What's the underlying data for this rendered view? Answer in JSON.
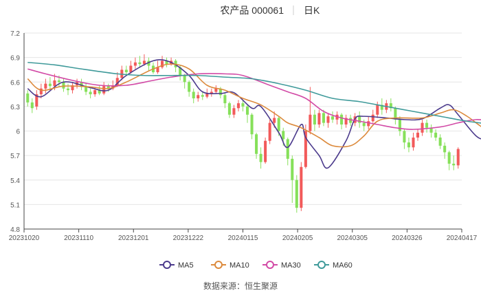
{
  "header": {
    "title": "农产品 000061",
    "period": "日K"
  },
  "source": "数据来源：恒生聚源",
  "chart_data": {
    "type": "candlestick",
    "x_ticks": [
      "20231020",
      "20231110",
      "20231201",
      "20231222",
      "20240115",
      "20240205",
      "20240305",
      "20240326",
      "20240417"
    ],
    "y_ticks": [
      4.8,
      5.1,
      5.4,
      5.7,
      6,
      6.3,
      6.6,
      6.9,
      7.2
    ],
    "ylim": [
      4.8,
      7.2
    ],
    "grid": true,
    "legend_position": "bottom-center",
    "colors": {
      "up": "#f25a5a",
      "down": "#86e05a",
      "grid": "#e6e6e6",
      "axis": "#444444",
      "text": "#555555"
    },
    "legend": [
      {
        "name": "MA5",
        "color": "#4b3a8c"
      },
      {
        "name": "MA10",
        "color": "#dc8a3c"
      },
      {
        "name": "MA30",
        "color": "#d24aa6"
      },
      {
        "name": "MA60",
        "color": "#3f9a9a"
      }
    ],
    "candles": [
      [
        6.46,
        6.35,
        6.5,
        6.3
      ],
      [
        6.35,
        6.28,
        6.4,
        6.22
      ],
      [
        6.3,
        6.45,
        6.5,
        6.26
      ],
      [
        6.45,
        6.52,
        6.58,
        6.4
      ],
      [
        6.52,
        6.58,
        6.64,
        6.46
      ],
      [
        6.58,
        6.55,
        6.66,
        6.5
      ],
      [
        6.55,
        6.62,
        6.7,
        6.5
      ],
      [
        6.62,
        6.6,
        6.68,
        6.54
      ],
      [
        6.6,
        6.52,
        6.64,
        6.48
      ],
      [
        6.52,
        6.5,
        6.58,
        6.44
      ],
      [
        6.5,
        6.56,
        6.6,
        6.46
      ],
      [
        6.56,
        6.6,
        6.64,
        6.52
      ],
      [
        6.6,
        6.54,
        6.64,
        6.5
      ],
      [
        6.54,
        6.48,
        6.58,
        6.44
      ],
      [
        6.48,
        6.45,
        6.52,
        6.4
      ],
      [
        6.45,
        6.5,
        6.54,
        6.42
      ],
      [
        6.5,
        6.46,
        6.56,
        6.44
      ],
      [
        6.46,
        6.55,
        6.6,
        6.44
      ],
      [
        6.55,
        6.52,
        6.58,
        6.48
      ],
      [
        6.52,
        6.56,
        6.62,
        6.5
      ],
      [
        6.56,
        6.65,
        6.72,
        6.54
      ],
      [
        6.65,
        6.75,
        6.8,
        6.62
      ],
      [
        6.75,
        6.72,
        6.8,
        6.68
      ],
      [
        6.72,
        6.8,
        6.86,
        6.7
      ],
      [
        6.8,
        6.84,
        6.9,
        6.76
      ],
      [
        6.84,
        6.82,
        6.92,
        6.78
      ],
      [
        6.82,
        6.86,
        6.94,
        6.8
      ],
      [
        6.86,
        6.8,
        6.9,
        6.74
      ],
      [
        6.8,
        6.72,
        6.84,
        6.7
      ],
      [
        6.72,
        6.78,
        6.86,
        6.7
      ],
      [
        6.78,
        6.86,
        6.92,
        6.76
      ],
      [
        6.86,
        6.82,
        6.9,
        6.78
      ],
      [
        6.82,
        6.86,
        6.9,
        6.8
      ],
      [
        6.86,
        6.78,
        6.88,
        6.72
      ],
      [
        6.78,
        6.68,
        6.8,
        6.62
      ],
      [
        6.68,
        6.6,
        6.7,
        6.52
      ],
      [
        6.6,
        6.48,
        6.62,
        6.42
      ],
      [
        6.48,
        6.4,
        6.52,
        6.34
      ],
      [
        6.4,
        6.44,
        6.48,
        6.36
      ],
      [
        6.44,
        6.42,
        6.48,
        6.38
      ],
      [
        6.42,
        6.46,
        6.52,
        6.4
      ],
      [
        6.46,
        6.48,
        6.52,
        6.42
      ],
      [
        6.48,
        6.52,
        6.56,
        6.46
      ],
      [
        6.52,
        6.44,
        6.54,
        6.4
      ],
      [
        6.44,
        6.34,
        6.46,
        6.28
      ],
      [
        6.34,
        6.2,
        6.36,
        6.16
      ],
      [
        6.2,
        6.28,
        6.32,
        6.16
      ],
      [
        6.28,
        6.34,
        6.38,
        6.24
      ],
      [
        6.34,
        6.3,
        6.38,
        6.24
      ],
      [
        6.3,
        6.2,
        6.32,
        6.1
      ],
      [
        6.2,
        5.96,
        6.22,
        5.9
      ],
      [
        5.96,
        5.72,
        5.98,
        5.66
      ],
      [
        5.72,
        5.62,
        5.8,
        5.54
      ],
      [
        5.62,
        5.88,
        5.92,
        5.6
      ],
      [
        5.88,
        6.1,
        6.14,
        5.84
      ],
      [
        6.1,
        6.16,
        6.24,
        6.04
      ],
      [
        6.16,
        6.0,
        6.18,
        5.94
      ],
      [
        6.0,
        5.9,
        6.04,
        5.82
      ],
      [
        5.9,
        5.66,
        5.92,
        5.58
      ],
      [
        5.66,
        5.4,
        5.7,
        5.12
      ],
      [
        5.4,
        5.06,
        5.46,
        5.0
      ],
      [
        5.06,
        5.56,
        5.62,
        5.02
      ],
      [
        5.56,
        6.0,
        6.08,
        5.54
      ],
      [
        6.0,
        6.2,
        6.54,
        5.96
      ],
      [
        6.2,
        6.08,
        6.26,
        6.0
      ],
      [
        6.08,
        6.22,
        6.26,
        6.04
      ],
      [
        6.22,
        6.1,
        6.26,
        6.06
      ],
      [
        6.1,
        6.18,
        6.22,
        6.04
      ],
      [
        6.18,
        6.14,
        6.24,
        6.1
      ],
      [
        6.14,
        6.2,
        6.24,
        6.08
      ],
      [
        6.2,
        6.08,
        6.22,
        6.02
      ],
      [
        6.08,
        6.16,
        6.2,
        6.04
      ],
      [
        6.16,
        6.1,
        6.2,
        6.06
      ],
      [
        6.1,
        6.18,
        6.22,
        6.06
      ],
      [
        6.18,
        6.1,
        6.24,
        6.04
      ],
      [
        6.1,
        6.06,
        6.14,
        6.0
      ],
      [
        6.06,
        6.12,
        6.18,
        6.02
      ],
      [
        6.12,
        6.2,
        6.26,
        6.1
      ],
      [
        6.2,
        6.32,
        6.36,
        6.16
      ],
      [
        6.32,
        6.26,
        6.4,
        6.2
      ],
      [
        6.26,
        6.34,
        6.38,
        6.22
      ],
      [
        6.34,
        6.28,
        6.4,
        6.24
      ],
      [
        6.28,
        6.14,
        6.3,
        6.08
      ],
      [
        6.14,
        6.0,
        6.18,
        5.94
      ],
      [
        6.0,
        5.86,
        6.02,
        5.78
      ],
      [
        5.86,
        5.8,
        5.92,
        5.74
      ],
      [
        5.8,
        5.92,
        5.98,
        5.76
      ],
      [
        5.92,
        5.98,
        6.02,
        5.88
      ],
      [
        5.98,
        6.1,
        6.14,
        5.94
      ],
      [
        6.1,
        6.04,
        6.14,
        5.98
      ],
      [
        6.04,
        5.98,
        6.08,
        5.92
      ],
      [
        5.98,
        5.92,
        6.02,
        5.88
      ],
      [
        5.92,
        5.82,
        5.96,
        5.78
      ],
      [
        5.82,
        5.74,
        5.86,
        5.66
      ],
      [
        5.74,
        5.6,
        5.76,
        5.52
      ],
      [
        5.6,
        5.58,
        5.7,
        5.52
      ],
      [
        5.58,
        5.78,
        5.8,
        5.54
      ]
    ],
    "series": [
      {
        "name": "MA5",
        "values": [
          [
            0,
            6.52
          ],
          [
            3,
            6.42
          ],
          [
            8,
            6.6
          ],
          [
            14,
            6.53
          ],
          [
            18,
            6.5
          ],
          [
            22,
            6.68
          ],
          [
            28,
            6.86
          ],
          [
            32,
            6.84
          ],
          [
            36,
            6.68
          ],
          [
            39,
            6.48
          ],
          [
            43,
            6.46
          ],
          [
            46,
            6.47
          ],
          [
            50,
            6.28
          ],
          [
            52,
            6.3
          ],
          [
            56,
            5.98
          ],
          [
            58,
            5.8
          ],
          [
            61,
            6.08
          ],
          [
            62,
            5.92
          ],
          [
            65,
            5.7
          ],
          [
            67,
            5.55
          ],
          [
            71,
            5.88
          ],
          [
            73,
            6.15
          ],
          [
            75,
            6.18
          ],
          [
            80,
            6.16
          ],
          [
            84,
            6.14
          ],
          [
            88,
            6.15
          ],
          [
            92,
            6.28
          ],
          [
            94,
            6.32
          ],
          [
            96,
            6.2
          ],
          [
            100,
            5.94
          ],
          [
            102,
            5.92
          ],
          [
            105,
            6.05
          ],
          [
            107,
            6.04
          ],
          [
            110,
            5.78
          ],
          [
            112,
            5.72
          ]
        ]
      },
      {
        "name": "MA10",
        "values": [
          [
            0,
            6.64
          ],
          [
            3,
            6.5
          ],
          [
            8,
            6.55
          ],
          [
            14,
            6.54
          ],
          [
            18,
            6.52
          ],
          [
            22,
            6.6
          ],
          [
            28,
            6.76
          ],
          [
            32,
            6.82
          ],
          [
            36,
            6.76
          ],
          [
            40,
            6.56
          ],
          [
            44,
            6.5
          ],
          [
            48,
            6.4
          ],
          [
            52,
            6.32
          ],
          [
            56,
            6.18
          ],
          [
            58,
            6.1
          ],
          [
            61,
            6.04
          ],
          [
            65,
            5.92
          ],
          [
            68,
            5.82
          ],
          [
            72,
            5.82
          ],
          [
            75,
            5.94
          ],
          [
            78,
            6.12
          ],
          [
            82,
            6.16
          ],
          [
            88,
            6.16
          ],
          [
            92,
            6.22
          ],
          [
            95,
            6.26
          ],
          [
            98,
            6.18
          ],
          [
            101,
            6.06
          ],
          [
            104,
            5.96
          ],
          [
            108,
            6.0
          ],
          [
            112,
            5.88
          ]
        ]
      },
      {
        "name": "MA30",
        "values": [
          [
            0,
            6.76
          ],
          [
            4,
            6.7
          ],
          [
            10,
            6.62
          ],
          [
            16,
            6.56
          ],
          [
            22,
            6.56
          ],
          [
            28,
            6.62
          ],
          [
            32,
            6.66
          ],
          [
            38,
            6.7
          ],
          [
            44,
            6.7
          ],
          [
            48,
            6.68
          ],
          [
            54,
            6.56
          ],
          [
            58,
            6.48
          ],
          [
            62,
            6.4
          ],
          [
            66,
            6.24
          ],
          [
            70,
            6.16
          ],
          [
            74,
            6.12
          ],
          [
            78,
            6.08
          ],
          [
            82,
            6.04
          ],
          [
            86,
            6.02
          ],
          [
            92,
            6.05
          ],
          [
            96,
            6.1
          ],
          [
            100,
            6.14
          ],
          [
            104,
            6.12
          ],
          [
            108,
            6.1
          ],
          [
            112,
            6.04
          ]
        ]
      },
      {
        "name": "MA60",
        "values": [
          [
            0,
            6.84
          ],
          [
            6,
            6.81
          ],
          [
            12,
            6.76
          ],
          [
            20,
            6.7
          ],
          [
            26,
            6.68
          ],
          [
            32,
            6.68
          ],
          [
            38,
            6.68
          ],
          [
            44,
            6.66
          ],
          [
            50,
            6.64
          ],
          [
            56,
            6.58
          ],
          [
            62,
            6.5
          ],
          [
            68,
            6.4
          ],
          [
            74,
            6.36
          ],
          [
            80,
            6.3
          ],
          [
            86,
            6.24
          ],
          [
            92,
            6.18
          ],
          [
            98,
            6.12
          ],
          [
            104,
            6.08
          ],
          [
            108,
            6.06
          ],
          [
            112,
            6.02
          ]
        ]
      }
    ]
  }
}
